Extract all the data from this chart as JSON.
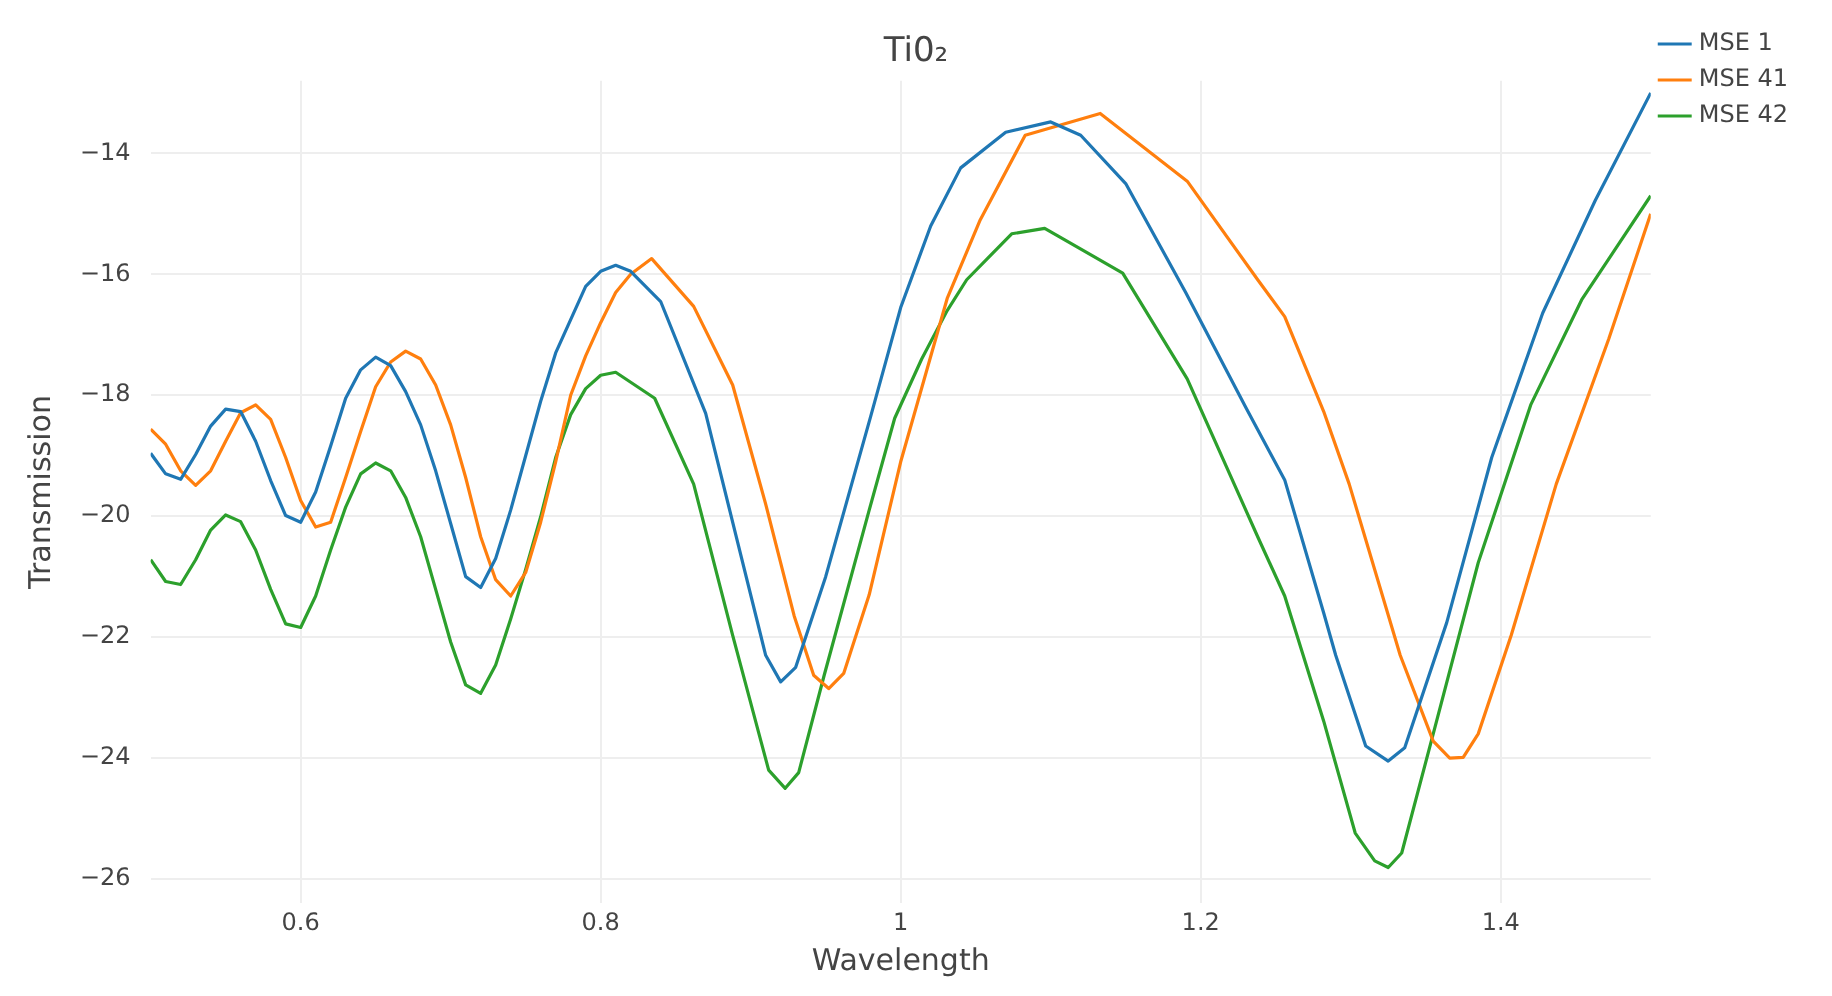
{
  "chart_data": {
    "type": "line",
    "title": "Ti0₂",
    "xlabel": "Wavelength",
    "ylabel": "Transmission",
    "xlim": [
      0.5,
      1.5
    ],
    "xticks": [
      0.6,
      0.8,
      1,
      1.2,
      1.4
    ],
    "ylim": [
      -26.4,
      -12.8
    ],
    "yticks": [
      -26,
      -24,
      -22,
      -20,
      -18,
      -16,
      -14
    ],
    "grid": true,
    "legend": "top right",
    "marker": "none",
    "line_style": "solid",
    "series": [
      {
        "name": "MSE 1",
        "color": "#1f77b4",
        "x": [
          0.5,
          0.51,
          0.52,
          0.53,
          0.54,
          0.55,
          0.56,
          0.57,
          0.58,
          0.59,
          0.6,
          0.61,
          0.62,
          0.63,
          0.64,
          0.65,
          0.66,
          0.67,
          0.68,
          0.69,
          0.7,
          0.71,
          0.72,
          0.73,
          0.74,
          0.75,
          0.76,
          0.77,
          0.78,
          0.79,
          0.8,
          0.81,
          0.82,
          0.84,
          0.87,
          0.89,
          0.91,
          0.92,
          0.93,
          0.95,
          0.98,
          1.0,
          1.02,
          1.04,
          1.07,
          1.1,
          1.12,
          1.15,
          1.19,
          1.23,
          1.256,
          1.282,
          1.29,
          1.31,
          1.325,
          1.336,
          1.364,
          1.394,
          1.428,
          1.463,
          1.5
        ],
        "values": [
          -18.96,
          -19.3,
          -19.39,
          -18.98,
          -18.51,
          -18.23,
          -18.27,
          -18.76,
          -19.41,
          -19.99,
          -20.1,
          -19.6,
          -18.84,
          -18.05,
          -17.58,
          -17.37,
          -17.51,
          -17.94,
          -18.49,
          -19.25,
          -20.12,
          -21.0,
          -21.18,
          -20.7,
          -19.9,
          -19.0,
          -18.1,
          -17.3,
          -16.75,
          -16.2,
          -15.95,
          -15.85,
          -15.95,
          -16.45,
          -18.3,
          -20.3,
          -22.3,
          -22.74,
          -22.5,
          -21.0,
          -18.35,
          -16.55,
          -15.2,
          -14.24,
          -13.65,
          -13.48,
          -13.7,
          -14.5,
          -16.3,
          -18.2,
          -19.4,
          -21.6,
          -22.3,
          -23.8,
          -24.05,
          -23.83,
          -21.76,
          -19.03,
          -16.64,
          -14.78,
          -13.0
        ]
      },
      {
        "name": "MSE 41",
        "color": "#ff7f0e",
        "x": [
          0.5,
          0.51,
          0.52,
          0.53,
          0.54,
          0.55,
          0.56,
          0.57,
          0.58,
          0.59,
          0.6,
          0.61,
          0.62,
          0.63,
          0.64,
          0.65,
          0.66,
          0.67,
          0.68,
          0.69,
          0.7,
          0.71,
          0.72,
          0.73,
          0.74,
          0.75,
          0.76,
          0.77,
          0.78,
          0.79,
          0.8,
          0.81,
          0.82,
          0.834,
          0.862,
          0.888,
          0.91,
          0.929,
          0.942,
          0.952,
          0.962,
          0.979,
          1.0,
          1.031,
          1.053,
          1.083,
          1.133,
          1.191,
          1.238,
          1.256,
          1.282,
          1.299,
          1.333,
          1.355,
          1.366,
          1.375,
          1.385,
          1.407,
          1.437,
          1.472,
          1.5
        ],
        "values": [
          -18.56,
          -18.81,
          -19.25,
          -19.49,
          -19.25,
          -18.76,
          -18.29,
          -18.16,
          -18.4,
          -19.03,
          -19.74,
          -20.18,
          -20.1,
          -19.36,
          -18.6,
          -17.86,
          -17.45,
          -17.27,
          -17.4,
          -17.83,
          -18.49,
          -19.36,
          -20.34,
          -21.05,
          -21.32,
          -20.93,
          -20.1,
          -19.1,
          -18.0,
          -17.35,
          -16.8,
          -16.3,
          -16.0,
          -15.74,
          -16.53,
          -17.83,
          -19.8,
          -21.65,
          -22.63,
          -22.85,
          -22.6,
          -21.3,
          -19.1,
          -16.4,
          -15.1,
          -13.7,
          -13.34,
          -14.46,
          -16.09,
          -16.7,
          -18.27,
          -19.47,
          -22.3,
          -23.72,
          -24.0,
          -23.99,
          -23.6,
          -21.97,
          -19.47,
          -17.07,
          -15.0
        ]
      },
      {
        "name": "MSE 42",
        "color": "#2ca02c",
        "x": [
          0.5,
          0.51,
          0.52,
          0.53,
          0.54,
          0.55,
          0.56,
          0.57,
          0.58,
          0.59,
          0.6,
          0.61,
          0.62,
          0.63,
          0.64,
          0.65,
          0.66,
          0.67,
          0.68,
          0.69,
          0.7,
          0.71,
          0.72,
          0.73,
          0.74,
          0.75,
          0.76,
          0.77,
          0.78,
          0.79,
          0.8,
          0.81,
          0.836,
          0.862,
          0.888,
          0.912,
          0.923,
          0.932,
          0.949,
          0.979,
          0.996,
          1.014,
          1.031,
          1.044,
          1.074,
          1.096,
          1.148,
          1.191,
          1.238,
          1.256,
          1.282,
          1.303,
          1.316,
          1.325,
          1.334,
          1.355,
          1.385,
          1.42,
          1.454,
          1.5
        ],
        "values": [
          -20.72,
          -21.08,
          -21.13,
          -20.72,
          -20.23,
          -19.98,
          -20.09,
          -20.56,
          -21.21,
          -21.78,
          -21.84,
          -21.32,
          -20.56,
          -19.85,
          -19.3,
          -19.12,
          -19.25,
          -19.69,
          -20.34,
          -21.21,
          -22.08,
          -22.79,
          -22.93,
          -22.46,
          -21.7,
          -20.88,
          -20.01,
          -19.03,
          -18.32,
          -17.89,
          -17.67,
          -17.62,
          -18.05,
          -19.47,
          -21.97,
          -24.2,
          -24.5,
          -24.24,
          -22.63,
          -19.9,
          -18.38,
          -17.4,
          -16.6,
          -16.09,
          -15.33,
          -15.24,
          -15.98,
          -17.73,
          -20.34,
          -21.32,
          -23.39,
          -25.24,
          -25.7,
          -25.81,
          -25.57,
          -23.6,
          -20.77,
          -18.16,
          -16.42,
          -14.7
        ]
      }
    ]
  }
}
